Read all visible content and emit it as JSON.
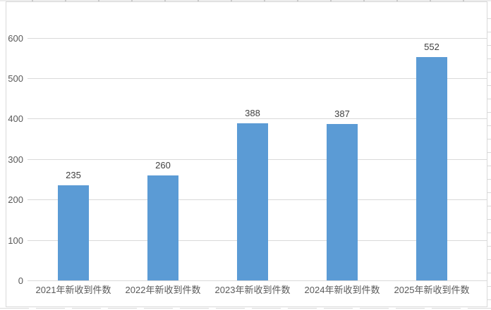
{
  "chart_data": {
    "type": "bar",
    "categories": [
      "2021年新收到件数",
      "2022年新收到件数",
      "2023年新收到件数",
      "2024年新收到件数",
      "2025年新收到件数"
    ],
    "values": [
      235,
      260,
      388,
      387,
      552
    ],
    "data_labels": [
      "235",
      "260",
      "388",
      "387",
      "552"
    ],
    "title": "",
    "xlabel": "",
    "ylabel": "",
    "ylim": [
      0,
      600
    ],
    "yticks": [
      0,
      100,
      200,
      300,
      400,
      500,
      600
    ],
    "ytick_labels": [
      "0",
      "100",
      "200",
      "300",
      "400",
      "500",
      "600"
    ],
    "grid": "horizontal",
    "legend": "none",
    "colors": {
      "bar": "#5B9BD5",
      "gridline": "#D9D9D9",
      "axis_text": "#595959",
      "data_label_text": "#3F3F3F",
      "chart_border": "#D9D9D9",
      "background": "#FFFFFF"
    }
  }
}
